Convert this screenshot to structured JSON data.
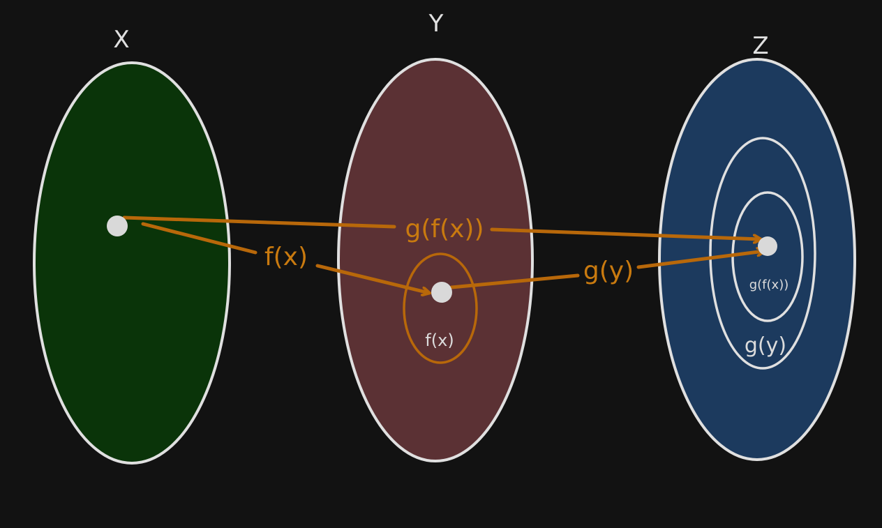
{
  "sets": {
    "x": {
      "label": "X",
      "fill": "#0a3409"
    },
    "y": {
      "label": "Y",
      "fill": "#5b3134"
    },
    "z": {
      "label": "Z",
      "fill": "#1c3a5e"
    }
  },
  "inner_sets": {
    "fx": {
      "label": "f(x)"
    },
    "gy": {
      "label": "g(y)"
    },
    "gfx": {
      "label": "g(f(x))"
    }
  },
  "arrows": {
    "f": {
      "label": "f(x)"
    },
    "g": {
      "label": "g(y)"
    },
    "gf": {
      "label": "g(f(x))"
    }
  },
  "colors": {
    "outline": "#e0e0e0",
    "arrow": "#b8680a",
    "point": "#d9d9d9"
  }
}
